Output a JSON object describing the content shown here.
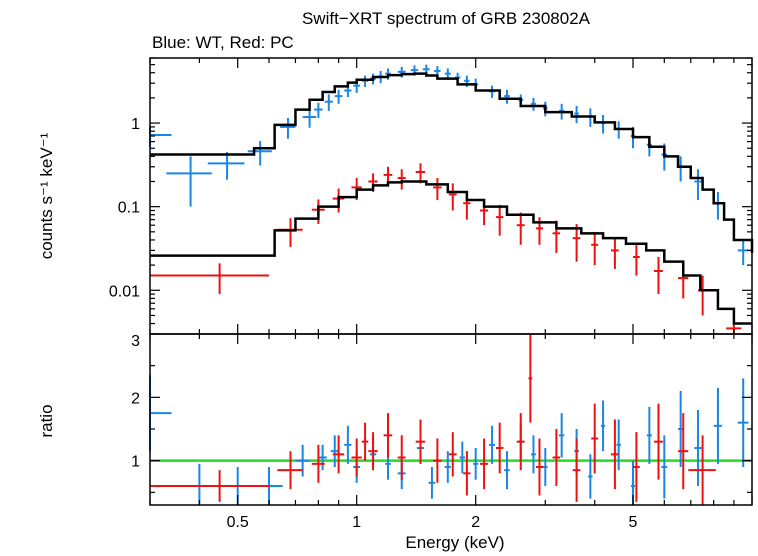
{
  "chart_data": {
    "type": "scatter",
    "title": "Swift−XRT spectrum of GRB 230802A",
    "subtitle": "Blue: WT, Red: PC",
    "xlabel": "Energy (keV)",
    "xscale": "log",
    "xlim": [
      0.3,
      10
    ],
    "x_ticks": [
      "0.5",
      "1",
      "2",
      "5"
    ],
    "colors": {
      "wt": "#1a86e6",
      "pc": "#ee1111",
      "model": "#000000",
      "unity": "#22dd22"
    },
    "panels": [
      {
        "name": "spectrum",
        "ylabel": "counts s⁻¹ keV⁻¹",
        "yscale": "log",
        "ylim": [
          0.003,
          6
        ],
        "y_ticks": [
          "0.01",
          "0.1",
          "1"
        ],
        "corner_label": "3",
        "series": [
          {
            "name": "WT",
            "color": "#1a86e6",
            "points": [
              [
                0.3,
                0.72,
                0.04,
                0.2
              ],
              [
                0.38,
                0.25,
                0.05,
                0.15
              ],
              [
                0.47,
                0.33,
                0.05,
                0.12
              ],
              [
                0.57,
                0.46,
                0.04,
                0.15
              ],
              [
                0.67,
                0.9,
                0.03,
                0.25
              ],
              [
                0.76,
                1.18,
                0.03,
                0.3
              ],
              [
                0.8,
                1.45,
                0.02,
                0.3
              ],
              [
                0.85,
                1.8,
                0.02,
                0.4
              ],
              [
                0.9,
                2.1,
                0.02,
                0.4
              ],
              [
                0.95,
                2.45,
                0.02,
                0.4
              ],
              [
                1.0,
                2.8,
                0.02,
                0.5
              ],
              [
                1.05,
                3.2,
                0.02,
                0.5
              ],
              [
                1.1,
                3.4,
                0.02,
                0.5
              ],
              [
                1.15,
                3.6,
                0.02,
                0.6
              ],
              [
                1.2,
                3.9,
                0.02,
                0.6
              ],
              [
                1.3,
                4.1,
                0.03,
                0.6
              ],
              [
                1.4,
                4.3,
                0.03,
                0.6
              ],
              [
                1.5,
                4.4,
                0.03,
                0.6
              ],
              [
                1.6,
                4.2,
                0.03,
                0.6
              ],
              [
                1.7,
                3.9,
                0.03,
                0.6
              ],
              [
                1.8,
                3.5,
                0.03,
                0.5
              ],
              [
                1.9,
                3.2,
                0.03,
                0.5
              ],
              [
                2.0,
                2.9,
                0.03,
                0.5
              ],
              [
                2.2,
                2.4,
                0.04,
                0.4
              ],
              [
                2.4,
                2.1,
                0.04,
                0.4
              ],
              [
                2.6,
                1.9,
                0.04,
                0.3
              ],
              [
                2.8,
                1.7,
                0.04,
                0.3
              ],
              [
                3.0,
                1.5,
                0.04,
                0.3
              ],
              [
                3.3,
                1.4,
                0.05,
                0.3
              ],
              [
                3.6,
                1.3,
                0.05,
                0.3
              ],
              [
                3.9,
                1.2,
                0.05,
                0.3
              ],
              [
                4.2,
                1.0,
                0.05,
                0.25
              ],
              [
                4.6,
                0.85,
                0.06,
                0.2
              ],
              [
                5.0,
                0.7,
                0.06,
                0.2
              ],
              [
                5.5,
                0.55,
                0.08,
                0.15
              ],
              [
                6.0,
                0.42,
                0.1,
                0.15
              ],
              [
                6.6,
                0.3,
                0.1,
                0.1
              ],
              [
                7.3,
                0.2,
                0.15,
                0.08
              ],
              [
                8.2,
                0.11,
                0.2,
                0.04
              ],
              [
                9.5,
                0.03,
                0.3,
                0.01
              ]
            ]
          },
          {
            "name": "PC",
            "color": "#ee1111",
            "points": [
              [
                0.45,
                0.015,
                0.15,
                0.006
              ],
              [
                0.68,
                0.053,
                0.05,
                0.02
              ],
              [
                0.8,
                0.092,
                0.03,
                0.03
              ],
              [
                0.9,
                0.125,
                0.03,
                0.04
              ],
              [
                1.0,
                0.17,
                0.03,
                0.05
              ],
              [
                1.1,
                0.2,
                0.03,
                0.05
              ],
              [
                1.2,
                0.24,
                0.03,
                0.06
              ],
              [
                1.3,
                0.22,
                0.03,
                0.06
              ],
              [
                1.45,
                0.26,
                0.04,
                0.07
              ],
              [
                1.6,
                0.17,
                0.04,
                0.05
              ],
              [
                1.75,
                0.14,
                0.04,
                0.05
              ],
              [
                1.9,
                0.11,
                0.04,
                0.04
              ],
              [
                2.1,
                0.09,
                0.05,
                0.03
              ],
              [
                2.3,
                0.075,
                0.05,
                0.03
              ],
              [
                2.6,
                0.06,
                0.06,
                0.025
              ],
              [
                2.9,
                0.055,
                0.06,
                0.02
              ],
              [
                3.2,
                0.048,
                0.07,
                0.02
              ],
              [
                3.6,
                0.042,
                0.08,
                0.02
              ],
              [
                4.0,
                0.035,
                0.08,
                0.015
              ],
              [
                4.5,
                0.03,
                0.1,
                0.012
              ],
              [
                5.1,
                0.025,
                0.1,
                0.01
              ],
              [
                5.8,
                0.017,
                0.15,
                0.008
              ],
              [
                6.7,
                0.014,
                0.2,
                0.006
              ],
              [
                7.5,
                0.01,
                0.2,
                0.005
              ],
              [
                9.0,
                0.0035,
                0.4,
                0.0015
              ]
            ]
          }
        ],
        "models": [
          {
            "name": "WT model",
            "color": "#000000",
            "x": [
              0.3,
              0.55,
              0.62,
              0.7,
              0.76,
              0.82,
              0.88,
              0.95,
              1.0,
              1.1,
              1.2,
              1.3,
              1.4,
              1.5,
              1.6,
              1.8,
              2.0,
              2.3,
              2.6,
              3.0,
              3.5,
              4.0,
              4.5,
              5.0,
              5.5,
              6.0,
              6.5,
              7.0,
              7.5,
              8.0,
              8.5,
              9.0,
              10.0
            ],
            "y": [
              0.42,
              0.5,
              0.95,
              1.45,
              1.9,
              2.35,
              2.75,
              3.05,
              3.3,
              3.55,
              3.75,
              3.85,
              3.9,
              3.7,
              3.4,
              2.9,
              2.45,
              1.95,
              1.6,
              1.35,
              1.2,
              1.02,
              0.85,
              0.68,
              0.52,
              0.4,
              0.3,
              0.22,
              0.16,
              0.11,
              0.07,
              0.04,
              0.028
            ]
          },
          {
            "name": "PC model",
            "color": "#000000",
            "x": [
              0.3,
              0.62,
              0.7,
              0.8,
              0.9,
              1.0,
              1.1,
              1.2,
              1.3,
              1.4,
              1.5,
              1.7,
              1.9,
              2.1,
              2.4,
              2.8,
              3.2,
              3.7,
              4.2,
              4.8,
              5.4,
              6.0,
              6.7,
              7.4,
              8.2,
              9.0
            ],
            "y": [
              0.026,
              0.052,
              0.072,
              0.1,
              0.13,
              0.16,
              0.18,
              0.195,
              0.2,
              0.2,
              0.185,
              0.15,
              0.12,
              0.1,
              0.08,
              0.065,
              0.055,
              0.048,
              0.042,
              0.036,
              0.03,
              0.022,
              0.015,
              0.01,
              0.006,
              0.004
            ]
          }
        ]
      },
      {
        "name": "ratio",
        "ylabel": "ratio",
        "yscale": "linear",
        "ylim": [
          0.3,
          3
        ],
        "y_ticks": [
          "1",
          "2"
        ],
        "reference_line": 1,
        "series": [
          {
            "name": "WT",
            "color": "#1a86e6",
            "points": [
              [
                0.3,
                1.75,
                0.04,
                0.6
              ],
              [
                0.4,
                0.6,
                0.06,
                0.35
              ],
              [
                0.5,
                0.6,
                0.06,
                0.3
              ],
              [
                0.6,
                0.6,
                0.05,
                0.3
              ],
              [
                0.73,
                1.0,
                0.03,
                0.25
              ],
              [
                0.82,
                1.05,
                0.02,
                0.2
              ],
              [
                0.88,
                1.15,
                0.02,
                0.25
              ],
              [
                0.95,
                1.25,
                0.02,
                0.3
              ],
              [
                1.0,
                0.9,
                0.02,
                0.25
              ],
              [
                1.1,
                1.1,
                0.02,
                0.25
              ],
              [
                1.2,
                0.95,
                0.02,
                0.25
              ],
              [
                1.3,
                0.8,
                0.03,
                0.25
              ],
              [
                1.45,
                1.2,
                0.03,
                0.25
              ],
              [
                1.55,
                0.65,
                0.03,
                0.25
              ],
              [
                1.7,
                0.9,
                0.03,
                0.25
              ],
              [
                1.85,
                1.05,
                0.03,
                0.25
              ],
              [
                2.0,
                0.95,
                0.03,
                0.25
              ],
              [
                2.2,
                1.25,
                0.04,
                0.3
              ],
              [
                2.4,
                0.85,
                0.04,
                0.3
              ],
              [
                2.6,
                1.3,
                0.04,
                0.3
              ],
              [
                2.8,
                1.1,
                0.04,
                0.3
              ],
              [
                3.0,
                0.9,
                0.04,
                0.3
              ],
              [
                3.3,
                1.4,
                0.05,
                0.35
              ],
              [
                3.6,
                1.15,
                0.05,
                0.35
              ],
              [
                3.9,
                0.75,
                0.05,
                0.35
              ],
              [
                4.2,
                1.55,
                0.05,
                0.4
              ],
              [
                4.6,
                1.25,
                0.06,
                0.4
              ],
              [
                5.0,
                0.6,
                0.06,
                0.4
              ],
              [
                5.5,
                1.4,
                0.08,
                0.45
              ],
              [
                6.0,
                0.9,
                0.1,
                0.5
              ],
              [
                6.6,
                1.5,
                0.1,
                0.6
              ],
              [
                7.3,
                1.2,
                0.15,
                0.6
              ],
              [
                8.2,
                1.55,
                0.2,
                0.6
              ],
              [
                9.5,
                1.6,
                0.3,
                0.7
              ]
            ]
          },
          {
            "name": "PC",
            "color": "#ee1111",
            "points": [
              [
                0.45,
                0.6,
                0.15,
                0.25
              ],
              [
                0.68,
                0.85,
                0.05,
                0.3
              ],
              [
                0.8,
                0.95,
                0.03,
                0.3
              ],
              [
                0.9,
                1.1,
                0.03,
                0.3
              ],
              [
                1.0,
                1.05,
                0.03,
                0.3
              ],
              [
                1.05,
                1.3,
                0.02,
                0.3
              ],
              [
                1.1,
                1.15,
                0.03,
                0.3
              ],
              [
                1.2,
                1.4,
                0.03,
                0.35
              ],
              [
                1.3,
                1.05,
                0.03,
                0.35
              ],
              [
                1.45,
                1.3,
                0.04,
                0.35
              ],
              [
                1.6,
                1.0,
                0.04,
                0.35
              ],
              [
                1.75,
                1.1,
                0.04,
                0.35
              ],
              [
                1.9,
                0.8,
                0.04,
                0.35
              ],
              [
                2.1,
                0.95,
                0.05,
                0.4
              ],
              [
                2.3,
                1.2,
                0.05,
                0.4
              ],
              [
                2.6,
                1.3,
                0.06,
                0.45
              ],
              [
                2.75,
                2.3,
                0.03,
                0.7
              ],
              [
                2.9,
                0.9,
                0.06,
                0.45
              ],
              [
                3.2,
                1.05,
                0.07,
                0.45
              ],
              [
                3.6,
                0.85,
                0.08,
                0.5
              ],
              [
                4.0,
                1.35,
                0.08,
                0.55
              ],
              [
                4.5,
                1.1,
                0.1,
                0.55
              ],
              [
                5.1,
                0.9,
                0.1,
                0.55
              ],
              [
                5.8,
                1.3,
                0.15,
                0.6
              ],
              [
                6.7,
                1.15,
                0.2,
                0.6
              ],
              [
                7.5,
                0.85,
                0.6,
                0.55
              ]
            ]
          }
        ]
      }
    ]
  }
}
